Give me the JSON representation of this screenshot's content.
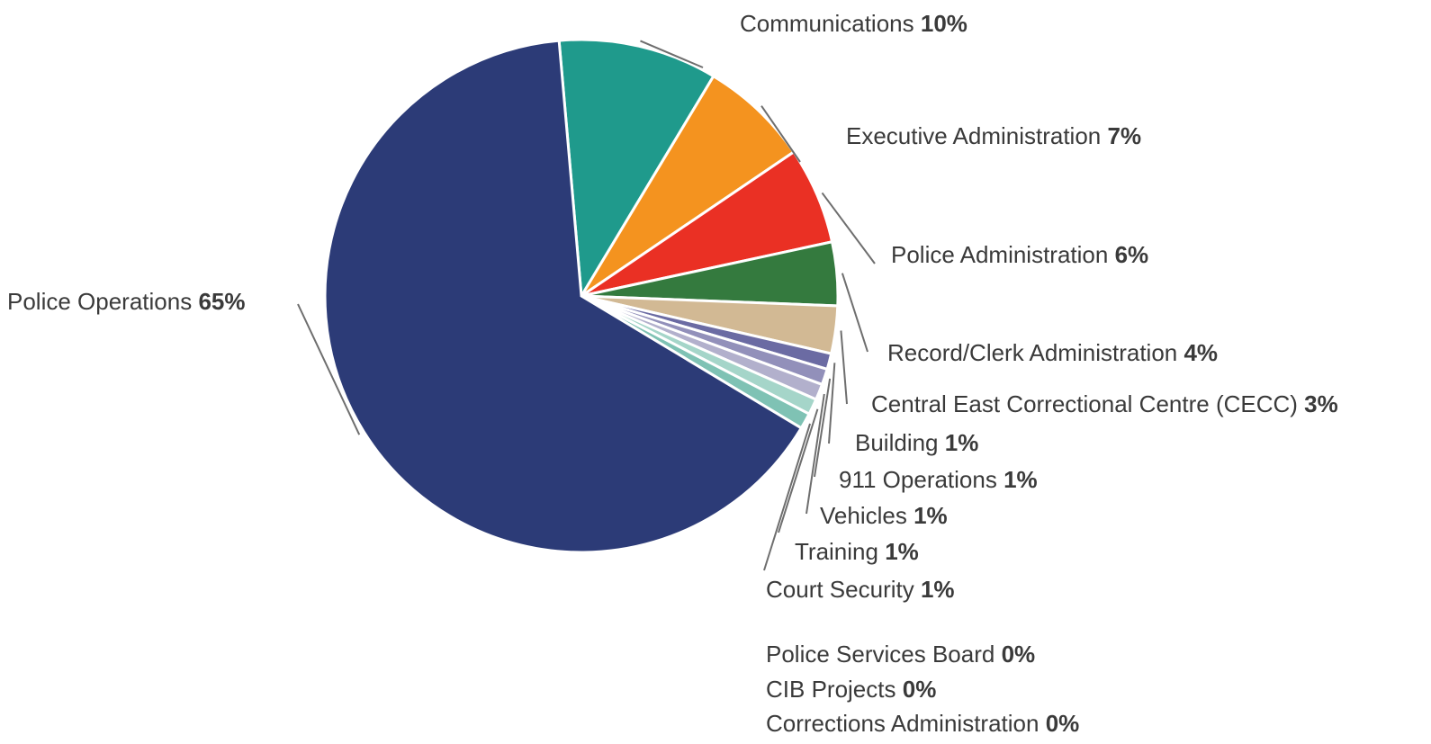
{
  "chart_data": {
    "type": "pie",
    "title": "",
    "start_angle_deg": -5,
    "direction": "clockwise",
    "slices": [
      {
        "label": "Communications",
        "percent_label": "10%",
        "value": 10.0,
        "color": "#1f9a8c"
      },
      {
        "label": "Executive Administration",
        "percent_label": "7%",
        "value": 6.9,
        "color": "#f4931f"
      },
      {
        "label": "Police Administration",
        "percent_label": "6%",
        "value": 6.1,
        "color": "#ea3024"
      },
      {
        "label": "Record/Clerk Administration",
        "percent_label": "4%",
        "value": 4.0,
        "color": "#347a3e"
      },
      {
        "label": "Central East Correctional Centre (CECC)",
        "percent_label": "3%",
        "value": 3.0,
        "color": "#d2b994"
      },
      {
        "label": "Building",
        "percent_label": "1%",
        "value": 1.0,
        "color": "#6b6ba3"
      },
      {
        "label": "911 Operations",
        "percent_label": "1%",
        "value": 1.0,
        "color": "#9290ba"
      },
      {
        "label": "Vehicles",
        "percent_label": "1%",
        "value": 1.0,
        "color": "#b2b0cc"
      },
      {
        "label": "Training",
        "percent_label": "1%",
        "value": 1.0,
        "color": "#a5d5c9"
      },
      {
        "label": "Court Security",
        "percent_label": "1%",
        "value": 1.0,
        "color": "#7fc2b4"
      },
      {
        "label": "Police Operations",
        "percent_label": "65%",
        "value": 65.0,
        "color": "#2c3b77"
      }
    ],
    "zero_items": [
      {
        "label": "Police Services Board",
        "percent_label": "0%"
      },
      {
        "label": "CIB Projects",
        "percent_label": "0%"
      },
      {
        "label": "Corrections Administration",
        "percent_label": "0%"
      }
    ]
  }
}
